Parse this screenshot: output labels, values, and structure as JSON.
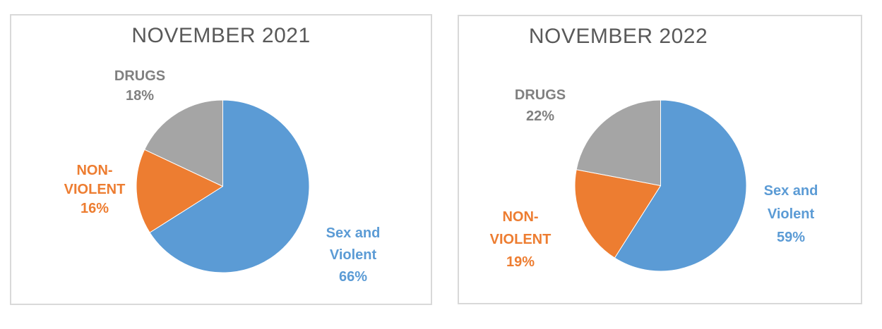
{
  "figure": {
    "kind": "pie-chart-comparison",
    "background": "#FFFFFF"
  },
  "colors": {
    "title": "#595959",
    "panel_border": "#D9D9D9",
    "background": "#FFFFFF",
    "blue": "#5B9BD5",
    "orange": "#ED7D31",
    "gray": "#A5A5A5",
    "gray_label": "#808080"
  },
  "chart_data": [
    {
      "type": "pie",
      "title": "NOVEMBER 2021",
      "start_angle_deg": -90,
      "direction": "clockwise",
      "legend": "none",
      "slices": [
        {
          "label": "Sex and Violent",
          "value": 66,
          "color": "#5B9BD5",
          "label_color": "#5B9BD5",
          "label_lines": [
            "Sex and",
            "Violent",
            "66%"
          ]
        },
        {
          "label": "NON-VIOLENT",
          "value": 16,
          "color": "#ED7D31",
          "label_color": "#ED7D31",
          "label_lines": [
            "NON-",
            "VIOLENT",
            "16%"
          ]
        },
        {
          "label": "DRUGS",
          "value": 18,
          "color": "#A5A5A5",
          "label_color": "#808080",
          "label_lines": [
            "DRUGS",
            "18%"
          ]
        }
      ]
    },
    {
      "type": "pie",
      "title": "NOVEMBER 2022",
      "start_angle_deg": -90,
      "direction": "clockwise",
      "legend": "none",
      "slices": [
        {
          "label": "Sex and Violent",
          "value": 59,
          "color": "#5B9BD5",
          "label_color": "#5B9BD5",
          "label_lines": [
            "Sex and",
            "Violent",
            "59%"
          ]
        },
        {
          "label": "NON-VIOLENT",
          "value": 19,
          "color": "#ED7D31",
          "label_color": "#ED7D31",
          "label_lines": [
            "NON-",
            "VIOLENT",
            "19%"
          ]
        },
        {
          "label": "DRUGS",
          "value": 22,
          "color": "#A5A5A5",
          "label_color": "#808080",
          "label_lines": [
            "DRUGS",
            "22%"
          ]
        }
      ]
    }
  ]
}
